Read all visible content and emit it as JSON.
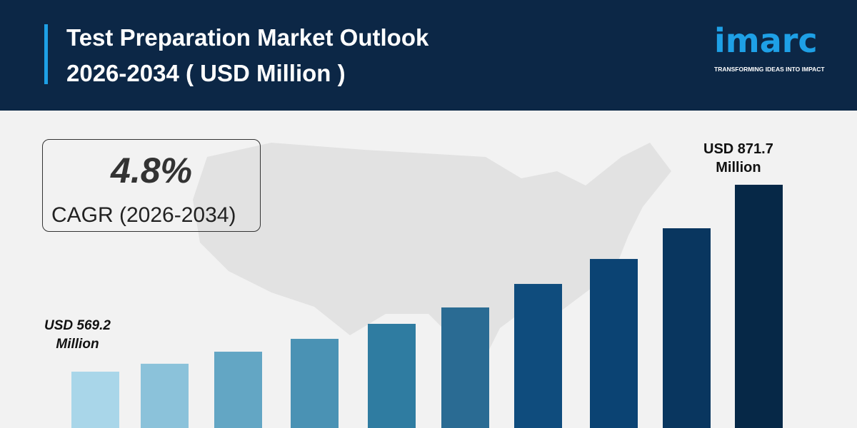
{
  "header": {
    "title_line1": "Test Preparation Market Outlook",
    "title_line2": "2026-2034 ( USD Million )"
  },
  "logo": {
    "word": "imarc",
    "tagline": "TRANSFORMING IDEAS INTO IMPACT"
  },
  "cagr": {
    "value": "4.8%",
    "label": "CAGR (2026-2034)"
  },
  "chart_data": {
    "type": "bar",
    "title": "Test Preparation Market Outlook 2026-2034 ( USD Million )",
    "values": [
      569.2,
      582.0,
      601.5,
      622.3,
      646.6,
      673.1,
      711.2,
      751.6,
      801.3,
      871.7
    ],
    "colors": [
      "#a9d6e9",
      "#8bc2da",
      "#63a6c4",
      "#4a92b4",
      "#2f7ca1",
      "#2a6b93",
      "#0f4c7d",
      "#0b4373",
      "#09365f",
      "#062847"
    ],
    "annotations": [
      {
        "bar": 0,
        "line1": "USD 569.2",
        "line2": "Million"
      },
      {
        "bar": 9,
        "line1": "USD 871.7",
        "line2": "Million"
      }
    ],
    "grid": false
  }
}
